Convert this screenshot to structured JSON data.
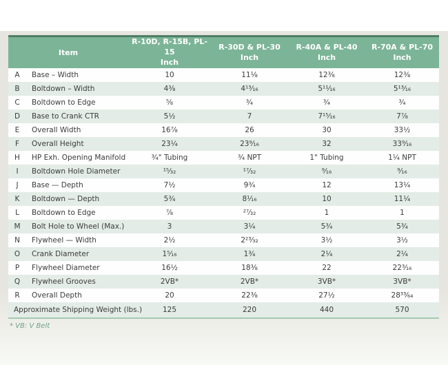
{
  "colors": {
    "header_bg": "#7cb497",
    "header_top_border": "#4e7f65",
    "row_stripe": "#e3ece6",
    "table_bottom_border": "#a5c8b3",
    "note_text": "#6fa287",
    "page_panel": "#e7e5df",
    "header_text": "#ffffff",
    "body_text": "#3b3b3b"
  },
  "table": {
    "header": {
      "item_label": "Item",
      "columns": [
        {
          "label": "R-10D, R-15B, PL-15",
          "unit": "Inch"
        },
        {
          "label": "R-30D & PL-30",
          "unit": "Inch"
        },
        {
          "label": "R-40A & PL-40",
          "unit": "Inch"
        },
        {
          "label": "R-70A & PL-70",
          "unit": "Inch"
        }
      ]
    },
    "rows": [
      {
        "key": "A",
        "item": "Base – Width",
        "values": [
          "10",
          "11⅛",
          "12⅜",
          "12⅜"
        ]
      },
      {
        "key": "B",
        "item": "Boltdown – Width",
        "values": [
          "4⅜",
          "4¹³⁄₁₆",
          "5¹¹⁄₁₆",
          "5¹³⁄₁₆"
        ]
      },
      {
        "key": "C",
        "item": "Boltdown to Edge",
        "values": [
          "⅝",
          "¾",
          "¾",
          "¾"
        ]
      },
      {
        "key": "D",
        "item": "Base to Crank CTR",
        "values": [
          "5½",
          "7",
          "7¹⁵⁄₁₆",
          "7⅞"
        ]
      },
      {
        "key": "E",
        "item": "Overall Width",
        "values": [
          "16⅞",
          "26",
          "30",
          "33½"
        ]
      },
      {
        "key": "F",
        "item": "Overall Height",
        "values": [
          "23¼",
          "23⁹⁄₁₆",
          "32",
          "33⁹⁄₁₆"
        ]
      },
      {
        "key": "H",
        "item": "HP Exh. Opening Manifold",
        "values": [
          "¾\" Tubing",
          "¾ NPT",
          "1\" Tubing",
          "1¼ NPT"
        ]
      },
      {
        "key": "I",
        "item": "Boltdown Hole Diameter",
        "values": [
          "¹⁵⁄₃₂",
          "¹⁷⁄₃₂",
          "⁹⁄₁₆",
          "⁹⁄₁₆"
        ]
      },
      {
        "key": "J",
        "item": "Base — Depth",
        "values": [
          "7½",
          "9¾",
          "12",
          "13¼"
        ]
      },
      {
        "key": "K",
        "item": "Boltdown — Depth",
        "values": [
          "5¾",
          "8¹⁄₁₆",
          "10",
          "11¼"
        ]
      },
      {
        "key": "L",
        "item": "Boltdown to Edge",
        "values": [
          "⅞",
          "²⁷⁄₃₂",
          "1",
          "1"
        ]
      },
      {
        "key": "M",
        "item": "Bolt Hole to Wheel (Max.)",
        "values": [
          "3",
          "3¼",
          "5¾",
          "5¾"
        ]
      },
      {
        "key": "N",
        "item": "Flywheel — Width",
        "values": [
          "2½",
          "2²³⁄₃₂",
          "3½",
          "3½"
        ]
      },
      {
        "key": "O",
        "item": "Crank Diameter",
        "values": [
          "1⁵⁄₁₆",
          "1¾",
          "2¼",
          "2¼"
        ]
      },
      {
        "key": "P",
        "item": "Flywheel Diameter",
        "values": [
          "16½",
          "18⅜",
          "22",
          "22³⁄₁₆"
        ]
      },
      {
        "key": "Q",
        "item": "Flywheel Grooves",
        "values": [
          "2VB*",
          "2VB*",
          "3VB*",
          "3VB*"
        ]
      },
      {
        "key": "R",
        "item": "Overall Depth",
        "values": [
          "20",
          "22⅜",
          "27½",
          "28³³⁄₆₄"
        ]
      }
    ],
    "summary_row": {
      "label": "Approximate Shipping Weight (lbs.)",
      "values": [
        "125",
        "220",
        "440",
        "570"
      ]
    },
    "note": "* VB: V Belt"
  }
}
